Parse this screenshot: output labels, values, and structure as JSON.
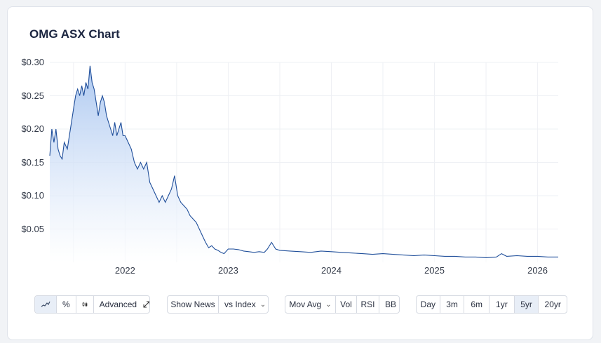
{
  "title": "OMG ASX Chart",
  "chart_data": {
    "type": "area",
    "y_tick_labels": [
      "$0.30",
      "$0.25",
      "$0.20",
      "$0.15",
      "$0.10",
      "$0.05"
    ],
    "y_ticks": [
      0.3,
      0.25,
      0.2,
      0.15,
      0.1,
      0.05
    ],
    "x_tick_labels": [
      "2022",
      "2023",
      "2024",
      "2025",
      "2026"
    ],
    "x_ticks": [
      2022.0,
      2023.0,
      2024.0,
      2025.0,
      2026.0
    ],
    "xlim": [
      2021.27,
      2026.2
    ],
    "ylim": [
      0.0,
      0.3
    ],
    "grid": true,
    "line_color": "#1f4e9a",
    "fill_top_color": "#a9c6f0",
    "series": [
      {
        "x": [
          2021.27,
          2021.29,
          2021.31,
          2021.33,
          2021.35,
          2021.37,
          2021.39,
          2021.41,
          2021.44,
          2021.46,
          2021.48,
          2021.5,
          2021.52,
          2021.54,
          2021.56,
          2021.58,
          2021.6,
          2021.62,
          2021.64,
          2021.66,
          2021.68,
          2021.7,
          2021.72,
          2021.74,
          2021.76,
          2021.78,
          2021.8,
          2021.82,
          2021.84,
          2021.86,
          2021.88,
          2021.9,
          2021.92,
          2021.94,
          2021.96,
          2021.98,
          2022.0,
          2022.03,
          2022.06,
          2022.09,
          2022.12,
          2022.15,
          2022.18,
          2022.21,
          2022.24,
          2022.27,
          2022.3,
          2022.33,
          2022.36,
          2022.39,
          2022.42,
          2022.45,
          2022.48,
          2022.51,
          2022.54,
          2022.57,
          2022.6,
          2022.63,
          2022.66,
          2022.69,
          2022.72,
          2022.75,
          2022.78,
          2022.81,
          2022.84,
          2022.87,
          2022.9,
          2022.93,
          2022.96,
          2023.0,
          2023.05,
          2023.1,
          2023.15,
          2023.2,
          2023.25,
          2023.3,
          2023.35,
          2023.38,
          2023.42,
          2023.46,
          2023.5,
          2023.6,
          2023.7,
          2023.8,
          2023.9,
          2024.0,
          2024.1,
          2024.2,
          2024.3,
          2024.4,
          2024.5,
          2024.6,
          2024.7,
          2024.8,
          2024.9,
          2025.0,
          2025.1,
          2025.2,
          2025.3,
          2025.4,
          2025.5,
          2025.6,
          2025.65,
          2025.7,
          2025.8,
          2025.9,
          2026.0,
          2026.1,
          2026.2
        ],
        "y": [
          0.16,
          0.2,
          0.18,
          0.2,
          0.17,
          0.16,
          0.155,
          0.18,
          0.17,
          0.19,
          0.21,
          0.23,
          0.25,
          0.26,
          0.25,
          0.265,
          0.25,
          0.27,
          0.26,
          0.295,
          0.27,
          0.26,
          0.24,
          0.22,
          0.24,
          0.25,
          0.24,
          0.22,
          0.21,
          0.2,
          0.19,
          0.21,
          0.19,
          0.2,
          0.21,
          0.19,
          0.19,
          0.18,
          0.17,
          0.15,
          0.14,
          0.15,
          0.14,
          0.15,
          0.12,
          0.11,
          0.1,
          0.09,
          0.1,
          0.09,
          0.1,
          0.11,
          0.13,
          0.1,
          0.09,
          0.085,
          0.08,
          0.07,
          0.065,
          0.06,
          0.05,
          0.04,
          0.03,
          0.022,
          0.025,
          0.02,
          0.018,
          0.015,
          0.013,
          0.02,
          0.02,
          0.019,
          0.017,
          0.016,
          0.015,
          0.016,
          0.015,
          0.02,
          0.03,
          0.02,
          0.018,
          0.017,
          0.016,
          0.015,
          0.017,
          0.016,
          0.015,
          0.014,
          0.013,
          0.012,
          0.013,
          0.012,
          0.011,
          0.01,
          0.011,
          0.01,
          0.009,
          0.009,
          0.008,
          0.008,
          0.007,
          0.008,
          0.013,
          0.009,
          0.01,
          0.009,
          0.009,
          0.008,
          0.008
        ]
      }
    ]
  },
  "toolbar": {
    "chart_type_buttons": {
      "line_icon": "line-chart-icon",
      "percent_label": "%",
      "candle_icon": "candlestick-icon",
      "advanced_label": "Advanced",
      "expand_icon": "expand-icon"
    },
    "news": {
      "show_news_label": "Show News",
      "vs_index_label": "vs Index"
    },
    "indicators": {
      "mov_avg_label": "Mov Avg",
      "vol_label": "Vol",
      "rsi_label": "RSI",
      "bb_label": "BB"
    },
    "ranges": [
      {
        "label": "Day",
        "active": false
      },
      {
        "label": "3m",
        "active": false
      },
      {
        "label": "6m",
        "active": false
      },
      {
        "label": "1yr",
        "active": false
      },
      {
        "label": "5yr",
        "active": true
      },
      {
        "label": "20yr",
        "active": false
      }
    ]
  }
}
